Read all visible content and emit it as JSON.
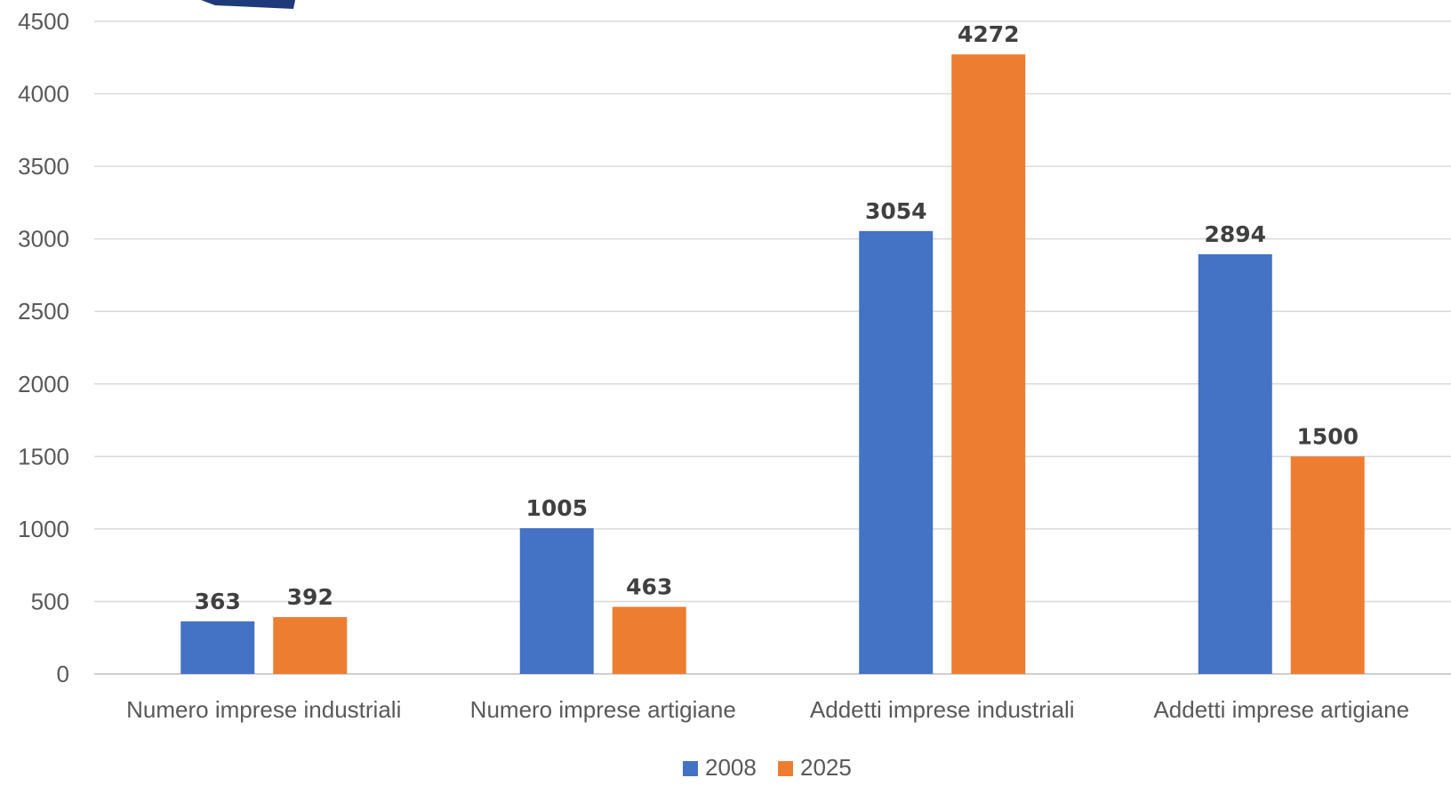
{
  "chart_data": {
    "type": "bar",
    "categories": [
      "Numero imprese industriali",
      "Numero imprese artigiane",
      "Addetti imprese industriali",
      "Addetti imprese artigiane"
    ],
    "series": [
      {
        "name": "2008",
        "values": [
          363,
          1005,
          3054,
          2894
        ],
        "color": "#4472C4"
      },
      {
        "name": "2025",
        "values": [
          392,
          463,
          4272,
          1500
        ],
        "color": "#ED7D31"
      }
    ],
    "ylim": [
      0,
      4500
    ],
    "yticks": [
      0,
      500,
      1000,
      1500,
      2000,
      2500,
      3000,
      3500,
      4000,
      4500
    ],
    "grid": true,
    "legend_position": "bottom",
    "data_labels": true,
    "decoration_color": "#1F3A7A"
  }
}
